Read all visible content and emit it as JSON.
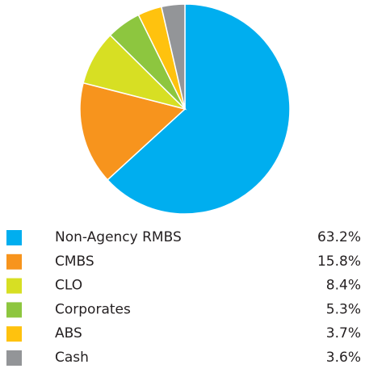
{
  "chart_data": {
    "type": "pie",
    "categories": [
      "Non-Agency RMBS",
      "CMBS",
      "CLO",
      "Corporates",
      "ABS",
      "Cash"
    ],
    "values": [
      63.2,
      15.8,
      8.4,
      5.3,
      3.7,
      3.6
    ],
    "value_labels": [
      "63.2%",
      "15.8%",
      "8.4%",
      "5.3%",
      "3.7%",
      "3.6%"
    ],
    "colors": [
      "#00aeef",
      "#f7941d",
      "#d7df23",
      "#8dc63f",
      "#ffc20e",
      "#939598"
    ]
  }
}
